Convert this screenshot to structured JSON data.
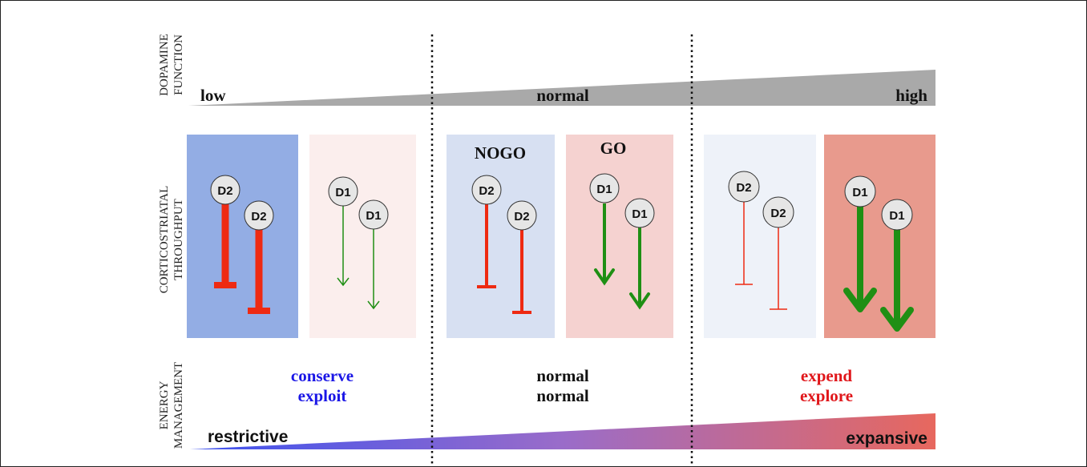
{
  "row_labels": {
    "dopamine": [
      "DOPAMINE",
      "FUNCTION"
    ],
    "throughput": [
      "CORTICOSTRIATAL",
      "THROUGHPUT"
    ],
    "energy": [
      "ENERGY",
      "MANAGEMENT"
    ]
  },
  "dopamine_levels": [
    "low",
    "normal",
    "high"
  ],
  "pathway_labels": {
    "nogo": "NOGO",
    "go": "GO"
  },
  "neurons": {
    "d2": "D2",
    "d1": "D1"
  },
  "energy_labels": {
    "low": [
      "conserve",
      "exploit"
    ],
    "normal": [
      "normal",
      "normal"
    ],
    "high": [
      "expend",
      "explore"
    ]
  },
  "energy_scale": {
    "left": "restrictive",
    "right": "expansive"
  },
  "colors": {
    "d2_strong_panel": "#93ade4",
    "d2_normal_panel": "#d7e0f2",
    "d2_weak_panel": "#eef2f9",
    "d1_weak_panel": "#fbeeed",
    "d1_normal_panel": "#f5d2d0",
    "d1_strong_panel": "#e89a8d",
    "inhibitory": "#ee2a12",
    "excitatory": "#1f8f14",
    "dopamine_wedge": "#a9a9a9",
    "conserve_text": "#1a16e6",
    "expend_text": "#e0161a",
    "energy_gradient_left": "#3d52ee",
    "energy_gradient_mid": "#9a6cc9",
    "energy_gradient_right": "#e7685e"
  }
}
